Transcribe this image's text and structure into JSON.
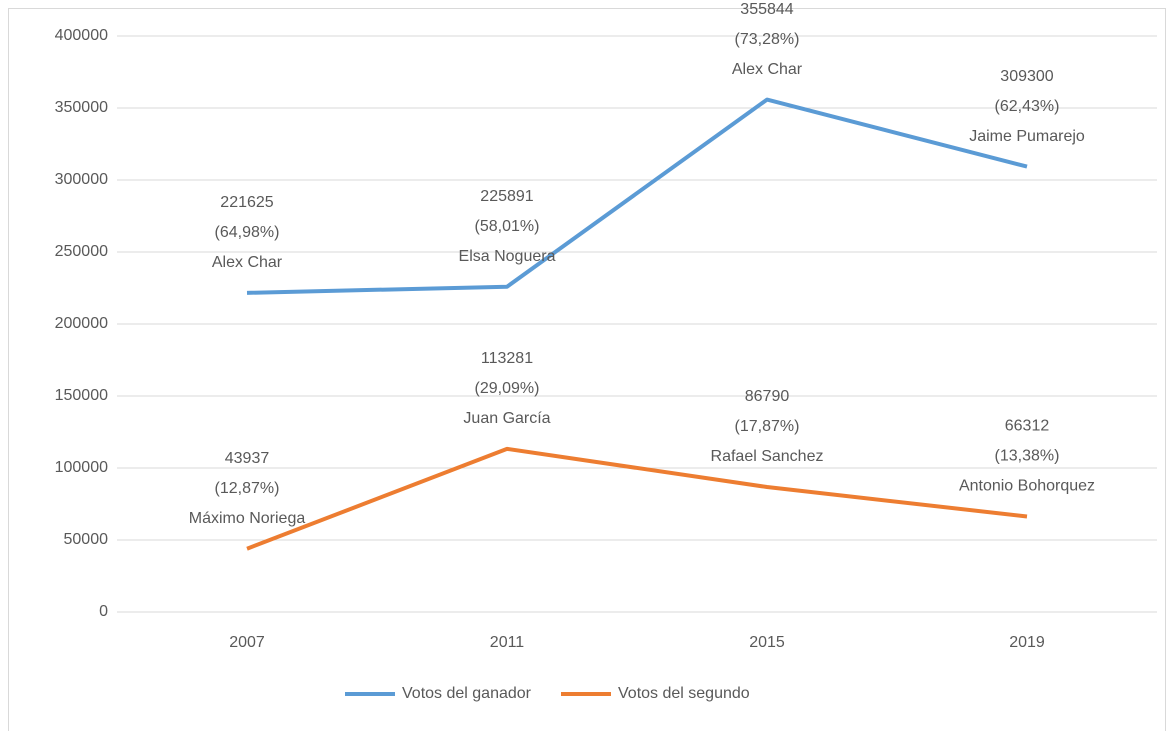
{
  "chart_data": {
    "type": "line",
    "categories": [
      "2007",
      "2011",
      "2015",
      "2019"
    ],
    "series": [
      {
        "name": "Votos del ganador",
        "color": "#5b9bd5",
        "values": [
          221625,
          225891,
          355844,
          309300
        ],
        "value_labels": [
          [
            "221625",
            "(64,98%)",
            "Alex Char"
          ],
          [
            "225891",
            "(58,01%)",
            "Elsa Noguera"
          ],
          [
            "355844",
            "(73,28%)",
            "Alex Char"
          ],
          [
            "309300",
            "(62,43%)",
            "Jaime Pumarejo"
          ]
        ]
      },
      {
        "name": "Votos del segundo",
        "color": "#ed7d31",
        "values": [
          43937,
          113281,
          86790,
          66312
        ],
        "value_labels": [
          [
            "43937",
            "(12,87%)",
            "Máximo Noriega"
          ],
          [
            "113281",
            "(29,09%)",
            "Juan García"
          ],
          [
            "86790",
            "(17,87%)",
            "Rafael Sanchez"
          ],
          [
            "66312",
            "(13,38%)",
            "Antonio Bohorquez"
          ]
        ]
      }
    ],
    "ylim": [
      0,
      400000
    ],
    "yticks": [
      0,
      50000,
      100000,
      150000,
      200000,
      250000,
      300000,
      350000,
      400000
    ],
    "grid": true,
    "legend": "bottom"
  }
}
